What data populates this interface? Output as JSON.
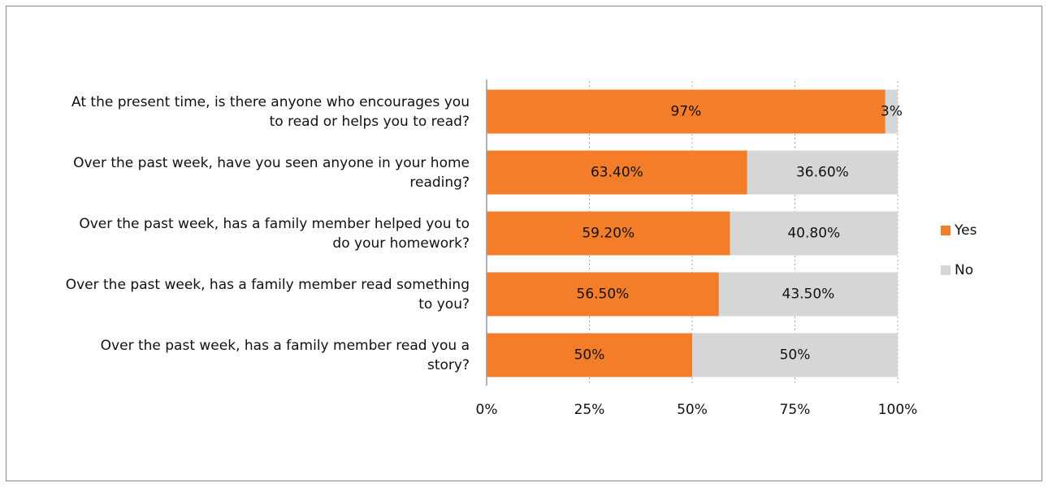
{
  "chart_data": {
    "type": "stacked_bar_horizontal",
    "categories": [
      "At the present time, is there anyone who encourages you to read or helps you to read?",
      "Over the past week, have you seen anyone in your home reading?",
      "Over the past week, has a family member helped you to do your homework?",
      "Over the past week, has a family member read something to you?",
      "Over the past week, has a family member read you a story?"
    ],
    "series": [
      {
        "name": "Yes",
        "color": "#f47d2a",
        "values": [
          97,
          63.4,
          59.2,
          56.5,
          50
        ],
        "value_labels": [
          "97%",
          "63.40%",
          "59.20%",
          "56.50%",
          "50%"
        ]
      },
      {
        "name": "No",
        "color": "#d6d6d6",
        "values": [
          3,
          36.6,
          40.8,
          43.5,
          50
        ],
        "value_labels": [
          "3%",
          "36.60%",
          "40.80%",
          "43.50%",
          "50%"
        ]
      }
    ],
    "xlim": [
      0,
      100
    ],
    "xticks": [
      {
        "value": 0,
        "label": "0%"
      },
      {
        "value": 25,
        "label": "25%"
      },
      {
        "value": 50,
        "label": "50%"
      },
      {
        "value": 75,
        "label": "75%"
      },
      {
        "value": 100,
        "label": "100%"
      }
    ],
    "grid": true,
    "legend": "right"
  }
}
